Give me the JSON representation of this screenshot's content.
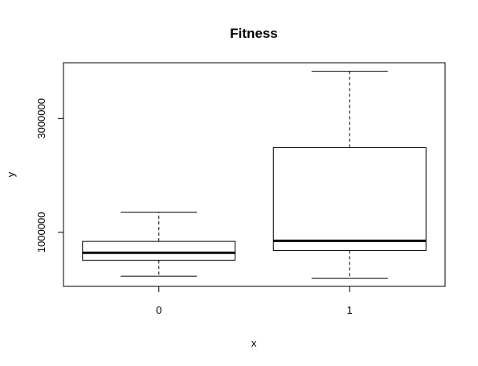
{
  "chart_data": {
    "type": "boxplot",
    "title": "Fitness",
    "xlabel": "x",
    "ylabel": "y",
    "categories": [
      "0",
      "1"
    ],
    "y_ticks": [
      1000000,
      3000000
    ],
    "y_tick_labels": [
      "1000000",
      "3000000"
    ],
    "ylim": [
      50000,
      3980000
    ],
    "grid": false,
    "boxes": [
      {
        "category": "0",
        "whisker_low": 230000,
        "q1": 510000,
        "median": 640000,
        "q3": 840000,
        "whisker_high": 1350000
      },
      {
        "category": "1",
        "whisker_low": 190000,
        "q1": 680000,
        "median": 850000,
        "q3": 2490000,
        "whisker_high": 3830000
      }
    ]
  }
}
